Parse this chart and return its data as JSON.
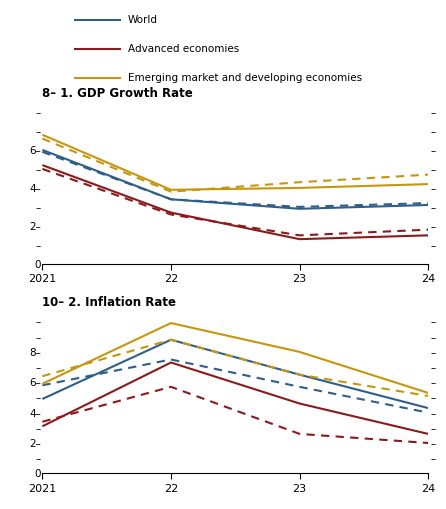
{
  "x": [
    2021,
    2022,
    2023,
    2024
  ],
  "x_labels": [
    "2021",
    "22",
    "23",
    "24"
  ],
  "gdp": {
    "title": "1. GDP Growth Rate",
    "title_prefix": "8–",
    "ylim": [
      0,
      8
    ],
    "yticks_labeled": [
      2,
      4,
      6
    ],
    "yticks_all": [
      1,
      2,
      3,
      4,
      5,
      6,
      7,
      8
    ],
    "world_solid": [
      6.0,
      3.4,
      2.9,
      3.1
    ],
    "world_dash": [
      5.9,
      3.4,
      3.0,
      3.2
    ],
    "advanced_solid": [
      5.2,
      2.7,
      1.3,
      1.5
    ],
    "advanced_dash": [
      5.0,
      2.6,
      1.5,
      1.8
    ],
    "emerging_solid": [
      6.8,
      3.9,
      4.0,
      4.2
    ],
    "emerging_dash": [
      6.6,
      3.8,
      4.3,
      4.7
    ]
  },
  "inf": {
    "title": "2. Inflation Rate",
    "title_prefix": "10–",
    "ylim": [
      0,
      10
    ],
    "yticks_labeled": [
      2,
      4,
      6,
      8
    ],
    "yticks_all": [
      1,
      2,
      3,
      4,
      5,
      6,
      7,
      8,
      9,
      10
    ],
    "world_solid": [
      4.9,
      8.8,
      6.5,
      4.3
    ],
    "world_dash": [
      5.8,
      7.5,
      5.7,
      4.0
    ],
    "advanced_solid": [
      3.1,
      7.3,
      4.6,
      2.6
    ],
    "advanced_dash": [
      3.4,
      5.7,
      2.6,
      2.0
    ],
    "emerging_solid": [
      5.9,
      9.9,
      8.0,
      5.3
    ],
    "emerging_dash": [
      6.4,
      8.8,
      6.5,
      5.1
    ]
  },
  "colors": {
    "world": "#2E5F8A",
    "advanced": "#8B1A1A",
    "emerging": "#C8960C"
  },
  "legend_labels": [
    "World",
    "Advanced economies",
    "Emerging market and developing economies"
  ],
  "line_width": 1.5,
  "dash_pattern": [
    4,
    3
  ]
}
